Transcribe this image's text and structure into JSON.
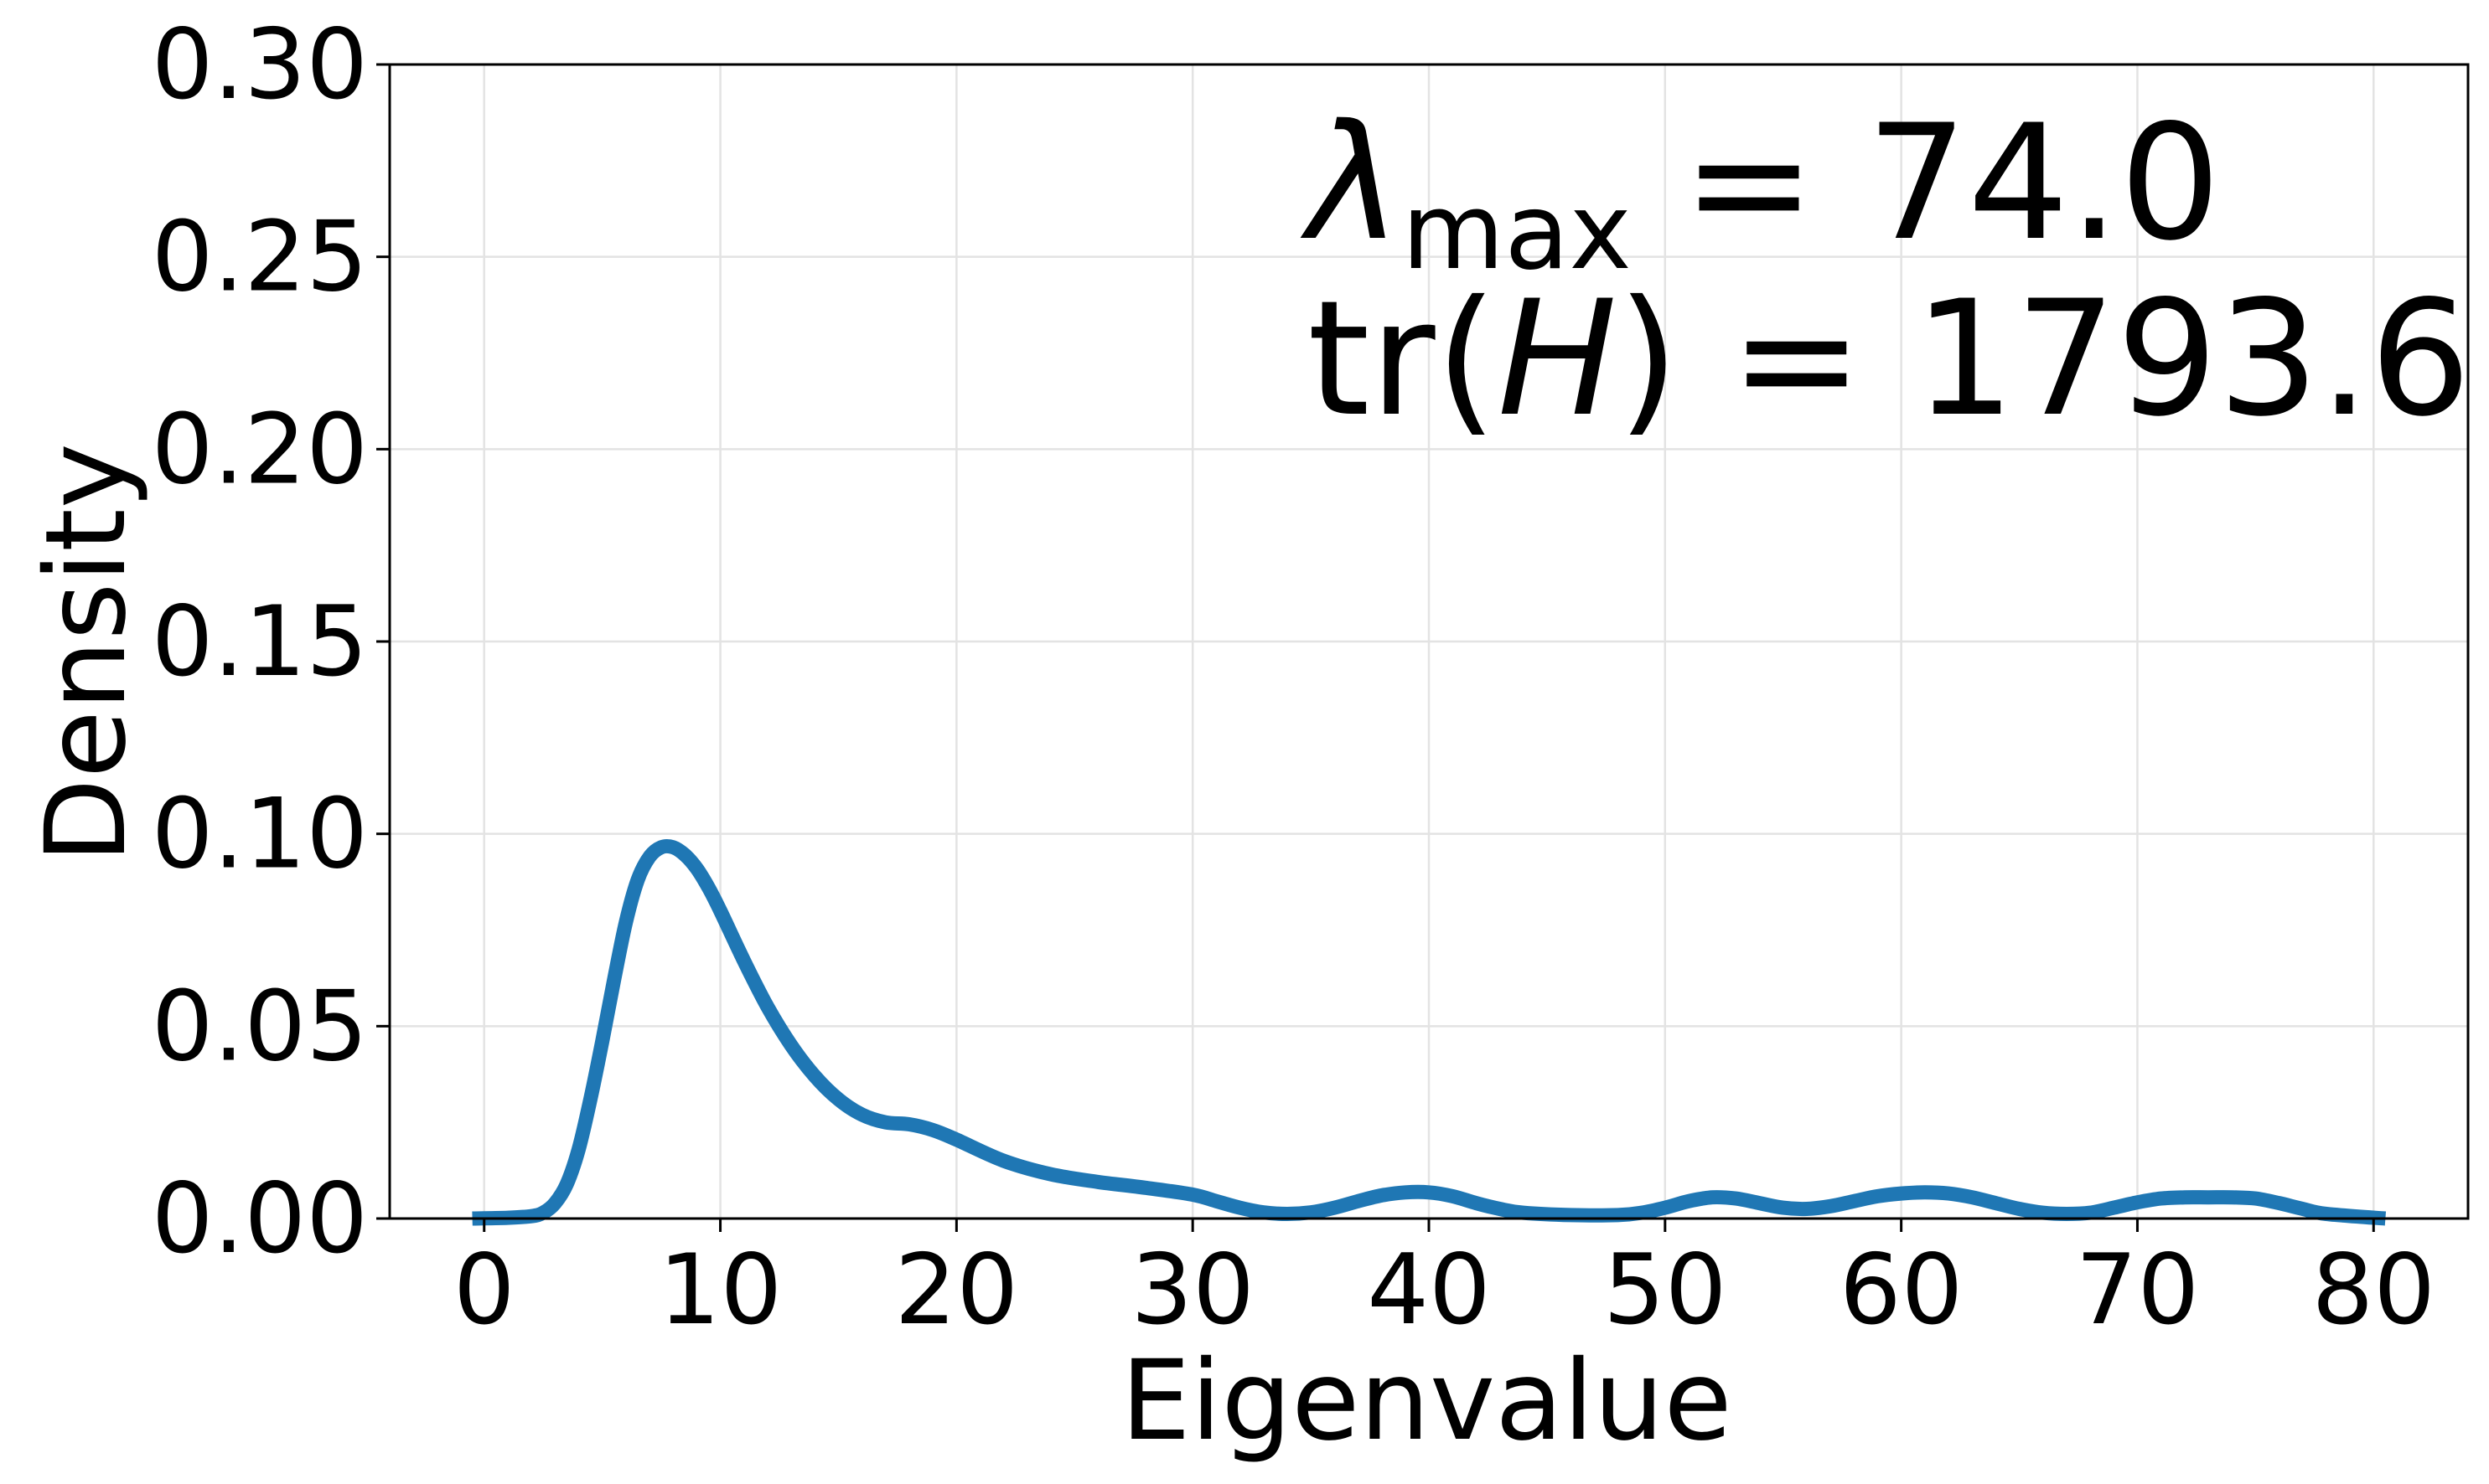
{
  "chart_data": {
    "type": "line",
    "xlabel": "Eigenvalue",
    "ylabel": "Density",
    "xlim": [
      -4,
      84
    ],
    "ylim": [
      0,
      0.3
    ],
    "x_ticks": [
      0,
      10,
      20,
      30,
      40,
      50,
      60,
      70,
      80
    ],
    "y_ticks": [
      0.0,
      0.05,
      0.1,
      0.15,
      0.2,
      0.25,
      0.3
    ],
    "x_tick_labels": [
      "0",
      "10",
      "20",
      "30",
      "40",
      "50",
      "60",
      "70",
      "80"
    ],
    "y_tick_labels": [
      "0.00",
      "0.05",
      "0.10",
      "0.15",
      "0.20",
      "0.25",
      "0.30"
    ],
    "grid": true,
    "line_color": "#1f77b4",
    "annotations": {
      "lambda_symbol": "λ",
      "lambda_subscript": "max",
      "lambda_value": " = 74.0",
      "trace_prefix": "tr(",
      "trace_var": "H",
      "trace_value": ") = 1793.6"
    },
    "series": [
      {
        "x": [
          -0.5,
          1,
          2,
          2.5,
          3,
          3.5,
          4,
          4.5,
          5,
          5.5,
          6,
          6.5,
          7,
          7.5,
          8,
          8.5,
          9,
          9.5,
          10,
          11,
          12,
          13,
          14,
          15,
          16,
          17,
          18,
          19,
          20,
          22,
          24,
          26,
          28,
          30,
          31,
          32,
          33,
          34,
          35,
          36,
          37,
          38,
          39,
          40,
          41,
          42,
          43,
          44,
          46,
          48,
          49,
          50,
          51,
          52,
          53,
          54,
          55,
          56,
          57,
          58,
          59,
          60,
          61,
          62,
          63,
          64,
          65,
          66,
          67,
          68,
          69,
          70,
          71,
          72,
          73,
          74,
          75,
          76,
          77,
          78,
          80.5
        ],
        "y": [
          0.0,
          0.0002,
          0.0006,
          0.0015,
          0.004,
          0.009,
          0.018,
          0.031,
          0.046,
          0.062,
          0.077,
          0.088,
          0.094,
          0.0965,
          0.0965,
          0.0945,
          0.091,
          0.086,
          0.08,
          0.067,
          0.055,
          0.045,
          0.037,
          0.031,
          0.027,
          0.025,
          0.0245,
          0.023,
          0.0205,
          0.015,
          0.0115,
          0.0095,
          0.008,
          0.0062,
          0.0045,
          0.0028,
          0.0016,
          0.0012,
          0.0016,
          0.0028,
          0.0045,
          0.006,
          0.0068,
          0.0068,
          0.0058,
          0.004,
          0.0025,
          0.0015,
          0.0009,
          0.0009,
          0.0015,
          0.0028,
          0.0045,
          0.0055,
          0.0052,
          0.004,
          0.0028,
          0.0025,
          0.0032,
          0.0045,
          0.0058,
          0.0065,
          0.0068,
          0.0065,
          0.0055,
          0.004,
          0.0025,
          0.0015,
          0.0012,
          0.0015,
          0.0028,
          0.0042,
          0.0052,
          0.0055,
          0.0055,
          0.0055,
          0.0052,
          0.004,
          0.0025,
          0.0012,
          0.0
        ]
      }
    ]
  }
}
